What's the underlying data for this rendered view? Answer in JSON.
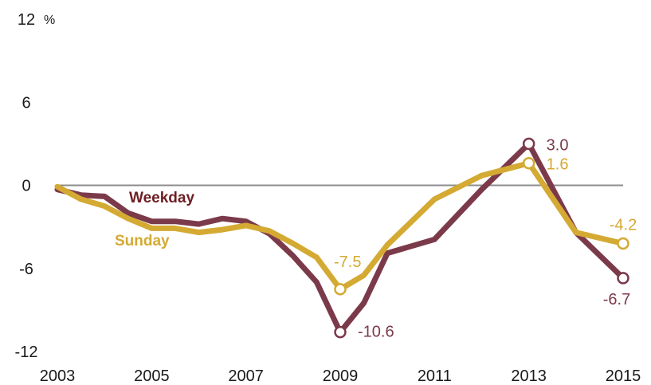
{
  "chart_data": {
    "type": "line",
    "title": "",
    "xlabel": "",
    "ylabel": "",
    "y_unit": "%",
    "ylim": [
      -12,
      12
    ],
    "xlim": [
      2003,
      2015
    ],
    "y_ticks": [
      "12",
      "6",
      "0",
      "-6",
      "-12"
    ],
    "x_ticks": [
      "2003",
      "2005",
      "2007",
      "2009",
      "2011",
      "2013",
      "2015"
    ],
    "zero_line": true,
    "grid": false,
    "colors": {
      "weekday": "#7b3a4a",
      "weekday_label": "#6e1e24",
      "sunday": "#d4aa33",
      "zero_line": "#8c8c8c"
    },
    "series": [
      {
        "name": "Weekday",
        "x": [
          2003,
          2003.5,
          2004,
          2004.5,
          2005,
          2005.5,
          2006,
          2006.5,
          2007,
          2007.5,
          2008,
          2008.5,
          2009,
          2009.5,
          2010,
          2011,
          2012,
          2013,
          2014,
          2015
        ],
        "y": [
          -0.3,
          -0.7,
          -0.8,
          -2.0,
          -2.6,
          -2.6,
          -2.8,
          -2.4,
          -2.6,
          -3.5,
          -5.1,
          -7.0,
          -10.6,
          -8.5,
          -4.9,
          -3.9,
          -0.3,
          3.0,
          -3.4,
          -6.7
        ]
      },
      {
        "name": "Sunday",
        "x": [
          2003,
          2003.5,
          2004,
          2004.5,
          2005,
          2005.5,
          2006,
          2006.5,
          2007,
          2007.5,
          2008,
          2008.5,
          2009,
          2009.5,
          2010,
          2011,
          2012,
          2013,
          2014,
          2015
        ],
        "y": [
          -0.1,
          -1.0,
          -1.5,
          -2.4,
          -3.1,
          -3.1,
          -3.4,
          -3.2,
          -2.9,
          -3.3,
          -4.2,
          -5.2,
          -7.5,
          -6.5,
          -4.3,
          -1.0,
          0.7,
          1.6,
          -3.4,
          -4.2
        ]
      }
    ],
    "annotations": [
      {
        "series": 0,
        "x": 2009,
        "y": -10.6,
        "text": "-10.6"
      },
      {
        "series": 0,
        "x": 2013,
        "y": 3.0,
        "text": "3.0"
      },
      {
        "series": 0,
        "x": 2015,
        "y": -6.7,
        "text": "-6.7"
      },
      {
        "series": 1,
        "x": 2009,
        "y": -7.5,
        "text": "-7.5"
      },
      {
        "series": 1,
        "x": 2013,
        "y": 1.6,
        "text": "1.6"
      },
      {
        "series": 1,
        "x": 2015,
        "y": -4.2,
        "text": "-4.2"
      }
    ]
  }
}
